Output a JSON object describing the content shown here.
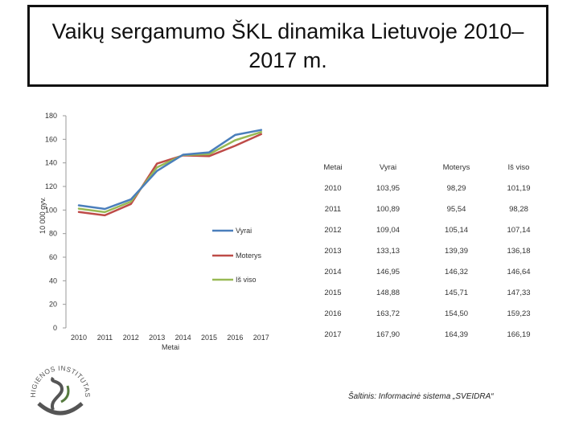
{
  "title": "Vaikų sergamumo ŠKL dinamika Lietuvoje 2010–2017 m.",
  "chart_data": {
    "type": "line",
    "x": [
      "2010",
      "2011",
      "2012",
      "2013",
      "2014",
      "2015",
      "2016",
      "2017"
    ],
    "xlabel": "Metai",
    "ylabel": "10 000 gyv.",
    "ylim": [
      0,
      180
    ],
    "yticks": [
      0,
      20,
      40,
      60,
      80,
      100,
      120,
      140,
      160,
      180
    ],
    "grid": false,
    "legend": "right",
    "series": [
      {
        "name": "Vyrai",
        "color": "#4a7ebb",
        "values": [
          103.95,
          100.89,
          109.04,
          133.13,
          146.95,
          148.88,
          163.72,
          167.9
        ]
      },
      {
        "name": "Moterys",
        "color": "#be4b48",
        "values": [
          98.29,
          95.54,
          105.14,
          139.39,
          146.32,
          145.71,
          154.5,
          164.39
        ]
      },
      {
        "name": "Iš viso",
        "color": "#98b954",
        "values": [
          101.19,
          98.28,
          107.14,
          136.18,
          146.64,
          147.33,
          159.23,
          166.19
        ]
      }
    ]
  },
  "table": {
    "headers": [
      "Metai",
      "Vyrai",
      "Moterys",
      "Iš viso"
    ],
    "rows": [
      [
        "2010",
        "103,95",
        "98,29",
        "101,19"
      ],
      [
        "2011",
        "100,89",
        "95,54",
        "98,28"
      ],
      [
        "2012",
        "109,04",
        "105,14",
        "107,14"
      ],
      [
        "2013",
        "133,13",
        "139,39",
        "136,18"
      ],
      [
        "2014",
        "146,95",
        "146,32",
        "146,64"
      ],
      [
        "2015",
        "148,88",
        "145,71",
        "147,33"
      ],
      [
        "2016",
        "163,72",
        "154,50",
        "159,23"
      ],
      [
        "2017",
        "167,90",
        "164,39",
        "166,19"
      ]
    ]
  },
  "logo_text": "HIGIENOS INSTITUTAS",
  "source": "Šaltinis: Informacinė sistema „SVEIDRA“"
}
